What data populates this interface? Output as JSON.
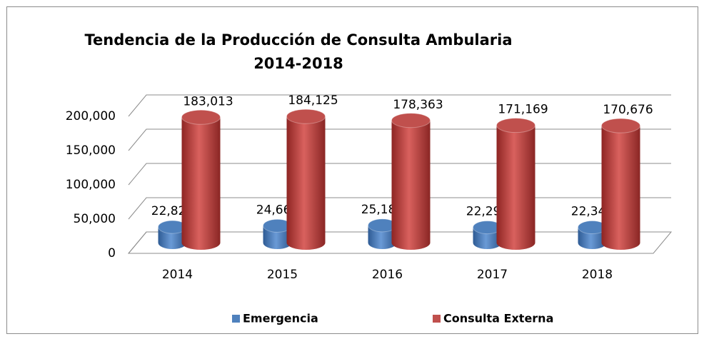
{
  "chart_data": {
    "type": "bar3d",
    "title": "Tendencia de la Producción de Consulta Ambularia",
    "subtitle": "2014-2018",
    "categories": [
      "2014",
      "2015",
      "2016",
      "2017",
      "2018"
    ],
    "series": [
      {
        "name": "Emergencia",
        "color": "#4f81bd",
        "values": [
          22822,
          24664,
          25183,
          22292,
          22342
        ],
        "value_labels": [
          "22,822",
          "24,664",
          "25,183",
          "22,292",
          "22,342"
        ]
      },
      {
        "name": "Consulta Externa",
        "color": "#c0504d",
        "values": [
          183013,
          184125,
          178363,
          171169,
          170676
        ],
        "value_labels": [
          "183,013",
          "184,125",
          "178,363",
          "171,169",
          "170,676"
        ]
      }
    ],
    "ylim": [
      0,
      200000
    ],
    "yticks": [
      0,
      {
        "value": 50000,
        "label": "50,000"
      },
      {
        "value": 100000,
        "label": "100,000"
      },
      {
        "value": 150000,
        "label": "150,000"
      },
      {
        "value": 200000,
        "label": "200,000"
      }
    ],
    "grid": true,
    "legend": "bottom"
  }
}
